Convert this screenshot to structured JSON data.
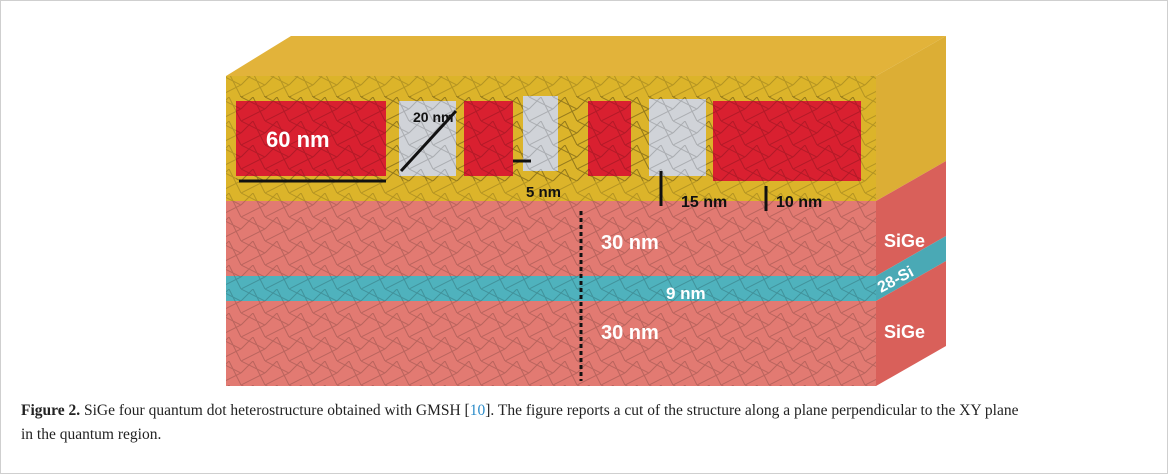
{
  "figure": {
    "labels": {
      "gate_width": "60 nm",
      "dot_width": "20 nm",
      "gap": "5 nm",
      "dot_height": "15 nm",
      "oxide_thickness": "10 nm",
      "upper_sige": "30 nm",
      "si_thickness": "9 nm",
      "lower_sige": "30 nm",
      "layer_top": "SiGe",
      "layer_middle": "28-Si",
      "layer_bottom": "SiGe"
    }
  },
  "caption": {
    "label": "Figure 2.",
    "text_before": "SiGe four quantum dot heterostructure obtained with GMSH [",
    "ref": "10",
    "text_after": "]. The figure reports a cut of the structure along a plane perpendicular to the XY plane in the quantum region."
  }
}
